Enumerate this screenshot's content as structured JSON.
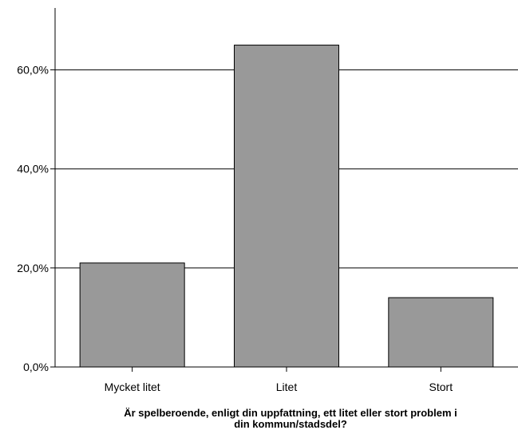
{
  "chart_data": {
    "type": "bar",
    "categories": [
      "Mycket litet",
      "Litet",
      "Stort"
    ],
    "values": [
      21.0,
      65.0,
      14.0
    ],
    "xlabel_lines": [
      "Är spelberoende, enligt din uppfattning, ett litet eller stort problem i",
      "din kommun/stadsdel?"
    ],
    "ylabel": "",
    "ylim": [
      0,
      72.5
    ],
    "yticks": [
      0,
      20,
      40,
      60
    ],
    "ytick_labels": [
      "0,0%",
      "20,0%",
      "40,0%",
      "60,0%"
    ],
    "grid": true,
    "bar_color": "#999999",
    "bar_edge_color": "#000000"
  }
}
